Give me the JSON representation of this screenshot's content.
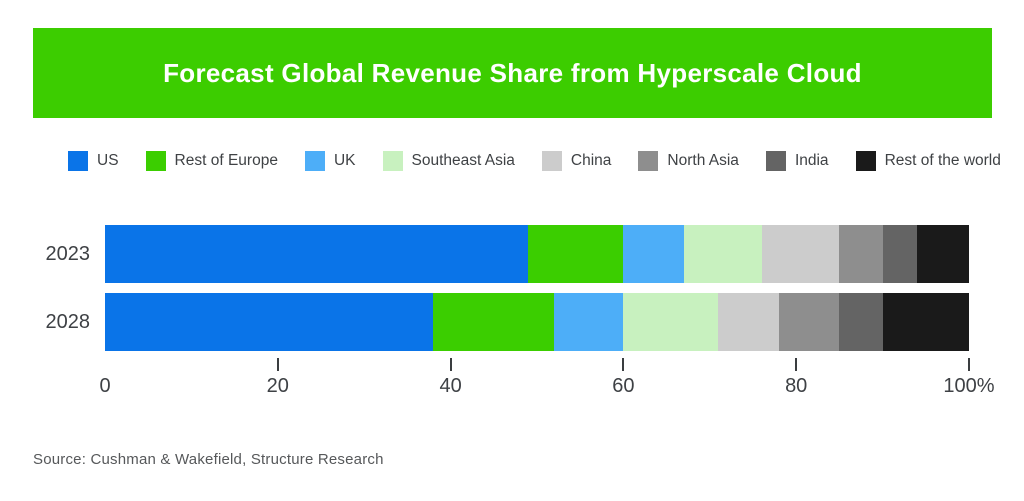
{
  "header": {
    "title": "Forecast Global Revenue Share from Hyperscale Cloud",
    "background_color": "#3ccd00",
    "text_color": "#ffffff"
  },
  "chart_data": {
    "type": "bar",
    "orientation": "horizontal-stacked",
    "title": "Forecast Global Revenue Share from Hyperscale Cloud",
    "categories": [
      "2023",
      "2028"
    ],
    "series": [
      {
        "name": "US",
        "color": "#0a74e8",
        "values": [
          49,
          38
        ]
      },
      {
        "name": "Rest of Europe",
        "color": "#3bce00",
        "values": [
          11,
          14
        ]
      },
      {
        "name": "UK",
        "color": "#4daef8",
        "values": [
          7,
          8
        ]
      },
      {
        "name": "Southeast Asia",
        "color": "#c8f1bf",
        "values": [
          9,
          11
        ]
      },
      {
        "name": "China",
        "color": "#cccccc",
        "values": [
          9,
          7
        ]
      },
      {
        "name": "North Asia",
        "color": "#8e8e8e",
        "values": [
          5,
          7
        ]
      },
      {
        "name": "India",
        "color": "#646464",
        "values": [
          4,
          5
        ]
      },
      {
        "name": "Rest of the world",
        "color": "#1a1a1a",
        "values": [
          6,
          10
        ]
      }
    ],
    "x_axis": {
      "range": [
        0,
        100
      ],
      "ticks": [
        0,
        20,
        40,
        60,
        80,
        100
      ],
      "tick_labels": [
        "0",
        "20",
        "40",
        "60",
        "80",
        "100%"
      ],
      "unit": "percent share"
    },
    "legend_position": "top",
    "grid": false
  },
  "footer": {
    "source": "Source: Cushman & Wakefield, Structure Research"
  }
}
